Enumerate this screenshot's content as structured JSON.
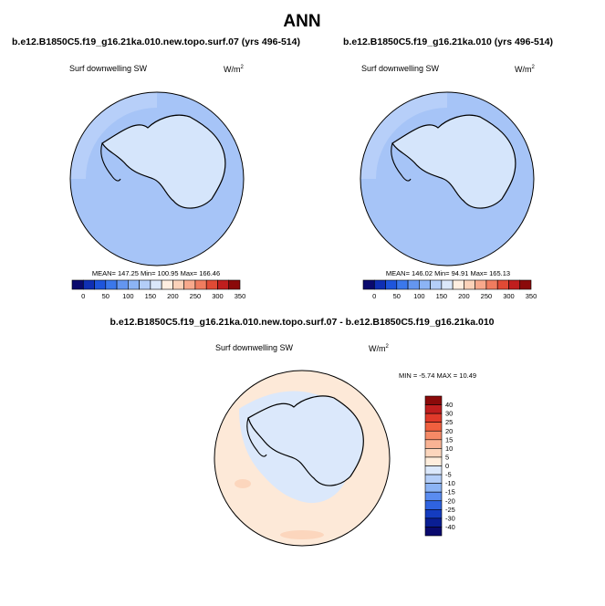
{
  "figure": {
    "title": "ANN"
  },
  "chart_data": [
    {
      "type": "heatmap",
      "projection": "south polar stereographic",
      "title": "b.e12.B1850C5.f19_g16.21ka.010.new.topo.surf.07 (yrs 496-514)",
      "variable_label": "Surf downwelling SW",
      "units_label": "W/m",
      "units_exp": "2",
      "stats_text": "MEAN= 147.25  Min= 100.95  Max= 166.46",
      "stats": {
        "mean": 147.25,
        "min": 100.95,
        "max": 166.46
      },
      "colorbar": {
        "orientation": "horizontal",
        "tick_labels": [
          "0",
          "50",
          "100",
          "150",
          "200",
          "250",
          "300",
          "350"
        ],
        "levels": [
          0,
          25,
          50,
          75,
          100,
          125,
          150,
          175,
          200,
          225,
          250,
          275,
          300,
          325,
          350
        ],
        "colors": [
          "#0a0a6e",
          "#0f2fb4",
          "#1e55dc",
          "#3b78eb",
          "#6496f0",
          "#8cb4f5",
          "#b4cef8",
          "#dbe8fb",
          "#ffeee0",
          "#fcd2b9",
          "#f8a98c",
          "#f07c5f",
          "#e04a35",
          "#c01e1e",
          "#8b0a0a"
        ]
      },
      "fill_colors": {
        "ocean": "#a6c4f7",
        "land_interior": "#d5e5fb",
        "rim": "#c3d7fa"
      }
    },
    {
      "type": "heatmap",
      "projection": "south polar stereographic",
      "title": "b.e12.B1850C5.f19_g16.21ka.010 (yrs 496-514)",
      "variable_label": "Surf downwelling SW",
      "units_label": "W/m",
      "units_exp": "2",
      "stats_text": "MEAN= 146.02  Min= 94.91  Max= 165.13",
      "stats": {
        "mean": 146.02,
        "min": 94.91,
        "max": 165.13
      },
      "colorbar": {
        "orientation": "horizontal",
        "tick_labels": [
          "0",
          "50",
          "100",
          "150",
          "200",
          "250",
          "300",
          "350"
        ],
        "levels": [
          0,
          25,
          50,
          75,
          100,
          125,
          150,
          175,
          200,
          225,
          250,
          275,
          300,
          325,
          350
        ],
        "colors": [
          "#0a0a6e",
          "#0f2fb4",
          "#1e55dc",
          "#3b78eb",
          "#6496f0",
          "#8cb4f5",
          "#b4cef8",
          "#dbe8fb",
          "#ffeee0",
          "#fcd2b9",
          "#f8a98c",
          "#f07c5f",
          "#e04a35",
          "#c01e1e",
          "#8b0a0a"
        ]
      },
      "fill_colors": {
        "ocean": "#a6c4f7",
        "land_interior": "#d5e5fb",
        "rim": "#c3d7fa"
      }
    },
    {
      "type": "heatmap",
      "projection": "south polar stereographic",
      "title": "b.e12.B1850C5.f19_g16.21ka.010.new.topo.surf.07 - b.e12.B1850C5.f19_g16.21ka.010",
      "variable_label": "Surf downwelling SW",
      "units_label": "W/m",
      "units_exp": "2",
      "stats_text": "MIN =  -5.74 MAX =  10.49",
      "stats": {
        "min": -5.74,
        "max": 10.49
      },
      "colorbar": {
        "orientation": "vertical",
        "tick_labels": [
          "40",
          "30",
          "25",
          "20",
          "15",
          "10",
          "5",
          "0",
          "-5",
          "-10",
          "-15",
          "-20",
          "-25",
          "-30",
          "-40"
        ],
        "colors": [
          "#8b0a0a",
          "#c01e1e",
          "#e03a2a",
          "#f0603f",
          "#f58a66",
          "#f9b394",
          "#fcd6bd",
          "#ffeedd",
          "#dbe8fb",
          "#b4cef8",
          "#8cb4f5",
          "#5a8cf0",
          "#2f63e0",
          "#143cc0",
          "#0a1e94",
          "#0a0a6e"
        ]
      },
      "fill_colors": {
        "ocean": "#fde9d8",
        "land_interior": "#dbe8fb",
        "positive_patch": "#fcd6bd"
      }
    }
  ]
}
